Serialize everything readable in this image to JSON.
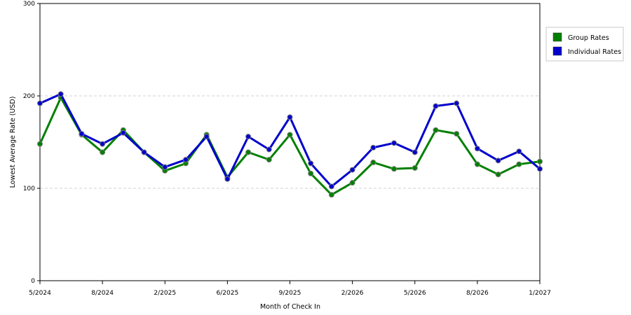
{
  "chart_data": {
    "type": "line",
    "title": "",
    "xlabel": "Month of Check In",
    "ylabel": "Lowest Average Rate (USD)",
    "ylim": [
      0,
      300
    ],
    "yticks": [
      0,
      100,
      200,
      300
    ],
    "grid": "horizontal dashed at 100 and 200",
    "legend_placement": "right",
    "x_tick_labels": [
      "5/2024",
      "8/2024",
      "2/2025",
      "6/2025",
      "9/2025",
      "2/2026",
      "5/2026",
      "8/2026",
      "1/2027"
    ],
    "series": [
      {
        "name": "Group Rates",
        "color": "#008000",
        "values": [
          148,
          198,
          158,
          139,
          163,
          139,
          119,
          127,
          158,
          112,
          139,
          131,
          158,
          116,
          93,
          106,
          128,
          121,
          122,
          163,
          159,
          126,
          115,
          126,
          129
        ]
      },
      {
        "name": "Individual Rates",
        "color": "#0000cc",
        "values": [
          192,
          202,
          159,
          148,
          160,
          139,
          123,
          131,
          156,
          110,
          156,
          142,
          177,
          127,
          102,
          120,
          144,
          149,
          139,
          189,
          192,
          143,
          130,
          140,
          121
        ]
      }
    ]
  }
}
